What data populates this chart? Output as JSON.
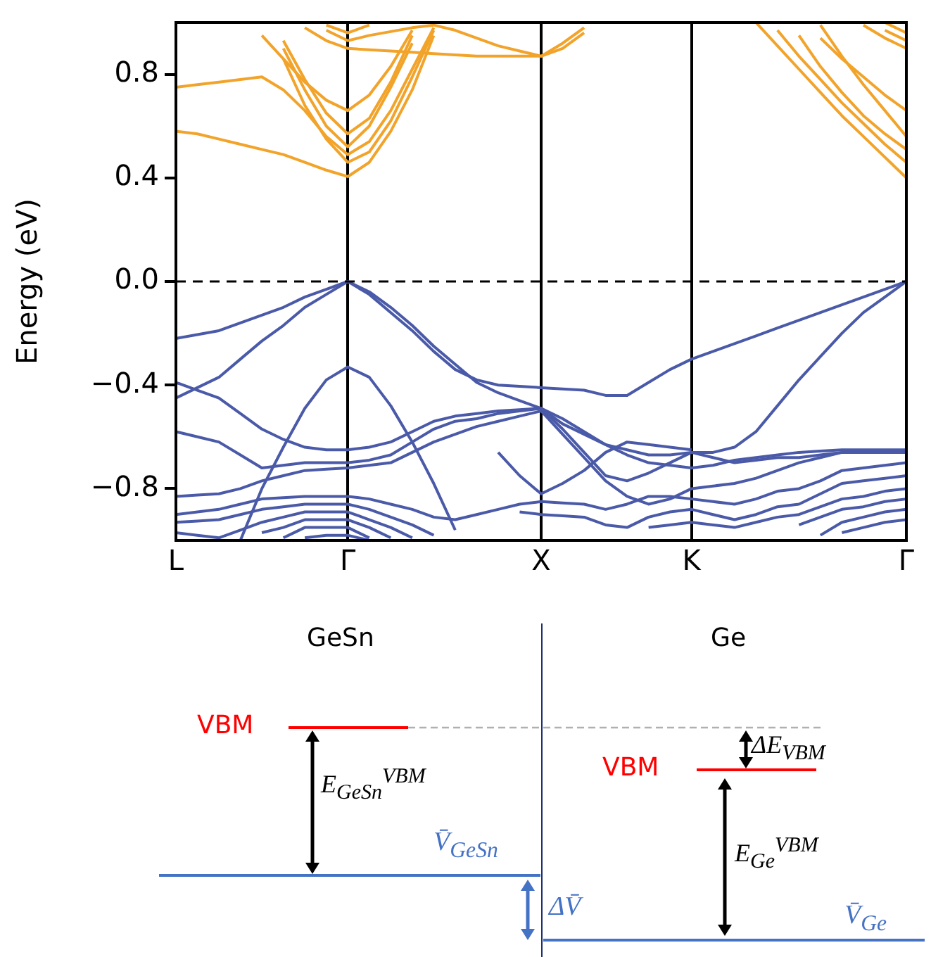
{
  "chart_data": [
    {
      "type": "line",
      "ylabel": "Energy (eV)",
      "categories": [
        "L",
        null,
        null,
        null,
        null,
        null,
        null,
        null,
        "Γ",
        null,
        null,
        null,
        null,
        null,
        null,
        null,
        null,
        "X",
        null,
        null,
        null,
        null,
        null,
        null,
        "K",
        null,
        null,
        null,
        null,
        null,
        null,
        null,
        null,
        null,
        "Γ"
      ],
      "ylim": [
        -1,
        1
      ],
      "yticks": [
        {
          "value": -0.8,
          "label": "−0.8"
        },
        {
          "value": -0.4,
          "label": "−0.4"
        },
        {
          "value": 0,
          "label": "0.0"
        },
        0.4,
        0.8
      ],
      "grid": "x",
      "legend": false,
      "marker": "none",
      "line_style": "solid",
      "ref_lines": [
        {
          "axis": "y",
          "value": 0,
          "color": "#000000",
          "line_style": "dashed"
        }
      ],
      "series": [
        {
          "color": "#f2a32a",
          "values": [
            0.58,
            0.57,
            0.55,
            0.53,
            0.51,
            0.49,
            0.46,
            0.43,
            0.405,
            0.46,
            0.58,
            0.74,
            0.95,
            null,
            null,
            null,
            null,
            null,
            null,
            null,
            null,
            null,
            null,
            null,
            null,
            null,
            null,
            1.0,
            0.91,
            0.82,
            0.73,
            0.64,
            0.56,
            0.48,
            0.4
          ]
        },
        {
          "color": "#f2a32a",
          "values": [
            0.75,
            0.76,
            0.77,
            0.78,
            0.79,
            0.74,
            0.66,
            0.56,
            0.49,
            0.54,
            0.66,
            0.82,
            0.98,
            null,
            null,
            null,
            null,
            null,
            null,
            null,
            null,
            null,
            null,
            null,
            null,
            null,
            null,
            null,
            0.97,
            0.87,
            0.78,
            0.69,
            0.61,
            0.53,
            0.46
          ]
        },
        {
          "color": "#f2a32a",
          "values": [
            null,
            null,
            null,
            null,
            0.95,
            0.86,
            0.77,
            0.7,
            0.66,
            0.72,
            0.83,
            0.97,
            null,
            null,
            null,
            null,
            null,
            null,
            null,
            null,
            null,
            null,
            null,
            null,
            null,
            null,
            null,
            null,
            null,
            0.95,
            0.83,
            0.73,
            0.64,
            0.57,
            0.51
          ]
        },
        {
          "color": "#f2a32a",
          "values": [
            null,
            null,
            null,
            null,
            null,
            0.93,
            0.78,
            0.65,
            0.57,
            0.63,
            0.77,
            0.95,
            null,
            null,
            null,
            null,
            null,
            null,
            null,
            null,
            null,
            null,
            null,
            null,
            null,
            null,
            null,
            null,
            null,
            null,
            0.94,
            0.86,
            0.79,
            0.72,
            0.66
          ]
        },
        {
          "color": "#f2a32a",
          "values": [
            null,
            null,
            null,
            null,
            null,
            0.9,
            0.74,
            0.6,
            0.52,
            0.6,
            0.75,
            0.92,
            null,
            null,
            null,
            null,
            null,
            null,
            null,
            null,
            null,
            null,
            null,
            null,
            null,
            null,
            null,
            null,
            null,
            null,
            0.99,
            0.87,
            0.76,
            0.66,
            0.56
          ]
        },
        {
          "color": "#f2a32a",
          "values": [
            null,
            null,
            null,
            null,
            null,
            0.86,
            0.68,
            0.55,
            0.46,
            0.5,
            0.62,
            0.79,
            0.97,
            null,
            null,
            null,
            null,
            null,
            null,
            null,
            null,
            null,
            null,
            null,
            null,
            null,
            null,
            null,
            null,
            null,
            null,
            null,
            null,
            null,
            null
          ]
        },
        {
          "color": "#f2a32a",
          "values": [
            null,
            null,
            null,
            null,
            null,
            null,
            0.98,
            0.93,
            0.9,
            0.895,
            0.89,
            0.885,
            0.88,
            0.875,
            0.87,
            0.87,
            0.87,
            0.87,
            0.9,
            0.96,
            null,
            null,
            null,
            null,
            null,
            null,
            null,
            null,
            null,
            null,
            null,
            null,
            0.99,
            0.94,
            0.9
          ]
        },
        {
          "color": "#f2a32a",
          "values": [
            null,
            null,
            null,
            null,
            null,
            null,
            null,
            0.97,
            0.93,
            0.95,
            0.965,
            0.98,
            0.99,
            0.97,
            0.94,
            0.91,
            0.89,
            0.87,
            0.92,
            0.98,
            null,
            null,
            null,
            null,
            null,
            null,
            null,
            null,
            null,
            null,
            null,
            null,
            null,
            0.97,
            0.93
          ]
        },
        {
          "color": "#f2a32a",
          "values": [
            null,
            null,
            null,
            null,
            null,
            null,
            null,
            0.99,
            0.96,
            0.99,
            null,
            null,
            null,
            null,
            null,
            null,
            null,
            null,
            null,
            null,
            null,
            null,
            null,
            null,
            null,
            null,
            null,
            null,
            null,
            null,
            null,
            null,
            null,
            1.0,
            0.96
          ]
        },
        {
          "color": "#4a5aa8",
          "values": [
            -0.22,
            -0.205,
            -0.19,
            -0.16,
            -0.13,
            -0.1,
            -0.06,
            -0.03,
            0.0,
            -0.05,
            -0.12,
            -0.19,
            -0.27,
            -0.34,
            -0.38,
            -0.4,
            -0.405,
            -0.41,
            -0.415,
            -0.42,
            -0.44,
            -0.44,
            -0.39,
            -0.34,
            -0.3,
            -0.27,
            -0.24,
            -0.21,
            -0.18,
            -0.15,
            -0.12,
            -0.09,
            -0.06,
            -0.03,
            0.0
          ]
        },
        {
          "color": "#4a5aa8",
          "values": [
            -0.45,
            -0.41,
            -0.37,
            -0.3,
            -0.23,
            -0.17,
            -0.1,
            -0.05,
            0.0,
            -0.04,
            -0.1,
            -0.17,
            -0.25,
            -0.32,
            -0.39,
            -0.43,
            -0.46,
            -0.49,
            -0.55,
            -0.59,
            -0.63,
            -0.65,
            -0.67,
            -0.67,
            -0.66,
            -0.66,
            -0.64,
            -0.58,
            -0.48,
            -0.38,
            -0.29,
            -0.2,
            -0.12,
            -0.06,
            0.0
          ]
        },
        {
          "color": "#4a5aa8",
          "values": [
            null,
            null,
            null,
            -1.0,
            -0.8,
            -0.64,
            -0.49,
            -0.38,
            -0.33,
            -0.37,
            -0.48,
            -0.62,
            -0.78,
            -0.96,
            null,
            null,
            null,
            null,
            null,
            null,
            null,
            null,
            null,
            null,
            null,
            null,
            null,
            null,
            null,
            null,
            null,
            null,
            null,
            null,
            null
          ]
        },
        {
          "color": "#4a5aa8",
          "values": [
            -0.39,
            -0.42,
            -0.45,
            -0.51,
            -0.57,
            -0.61,
            -0.64,
            -0.65,
            -0.65,
            -0.64,
            -0.62,
            -0.58,
            -0.54,
            -0.52,
            -0.51,
            -0.5,
            -0.495,
            -0.49,
            -0.53,
            -0.58,
            -0.63,
            -0.67,
            -0.7,
            -0.71,
            -0.72,
            -0.71,
            -0.69,
            -0.68,
            -0.67,
            -0.66,
            -0.655,
            -0.65,
            -0.65,
            -0.65,
            -0.65
          ]
        },
        {
          "color": "#4a5aa8",
          "values": [
            -0.58,
            -0.6,
            -0.62,
            -0.67,
            -0.72,
            -0.71,
            -0.7,
            -0.7,
            -0.7,
            -0.69,
            -0.67,
            -0.62,
            -0.57,
            -0.54,
            -0.53,
            -0.51,
            -0.5,
            -0.49,
            -0.57,
            -0.66,
            -0.75,
            -0.77,
            -0.74,
            -0.7,
            -0.66,
            -0.68,
            -0.7,
            -0.69,
            -0.68,
            -0.68,
            -0.67,
            -0.66,
            -0.66,
            -0.66,
            -0.66
          ]
        },
        {
          "color": "#4a5aa8",
          "values": [
            null,
            null,
            null,
            null,
            null,
            null,
            null,
            null,
            null,
            null,
            null,
            null,
            null,
            null,
            null,
            -0.66,
            -0.75,
            -0.82,
            -0.78,
            -0.73,
            -0.66,
            -0.62,
            -0.63,
            -0.64,
            -0.65,
            null,
            null,
            null,
            null,
            null,
            null,
            null,
            null,
            null,
            null
          ]
        },
        {
          "color": "#4a5aa8",
          "values": [
            -0.83,
            -0.825,
            -0.82,
            -0.8,
            -0.77,
            -0.75,
            -0.73,
            -0.725,
            -0.72,
            -0.71,
            -0.7,
            -0.66,
            -0.62,
            -0.59,
            -0.56,
            -0.54,
            -0.52,
            -0.5,
            -0.59,
            -0.68,
            -0.77,
            -0.83,
            -0.86,
            -0.84,
            -0.8,
            -0.79,
            -0.78,
            -0.76,
            -0.73,
            -0.7,
            -0.68,
            -0.66,
            -0.66,
            -0.66,
            -0.66
          ]
        },
        {
          "color": "#4a5aa8",
          "values": [
            -0.9,
            -0.89,
            -0.88,
            -0.86,
            -0.84,
            -0.835,
            -0.83,
            -0.83,
            -0.83,
            -0.84,
            -0.86,
            -0.88,
            -0.91,
            -0.92,
            -0.9,
            -0.88,
            -0.86,
            -0.85,
            -0.855,
            -0.86,
            -0.88,
            -0.86,
            -0.83,
            -0.83,
            -0.84,
            -0.85,
            -0.86,
            -0.84,
            -0.81,
            -0.8,
            -0.77,
            -0.73,
            -0.72,
            -0.71,
            -0.7
          ]
        },
        {
          "color": "#4a5aa8",
          "values": [
            -0.93,
            -0.925,
            -0.92,
            -0.9,
            -0.88,
            -0.87,
            -0.86,
            -0.86,
            -0.86,
            -0.88,
            -0.91,
            -0.94,
            -0.98,
            null,
            null,
            null,
            -0.89,
            -0.9,
            -0.905,
            -0.91,
            -0.94,
            -0.95,
            -0.91,
            -0.89,
            -0.88,
            -0.9,
            -0.92,
            -0.9,
            -0.87,
            -0.86,
            -0.82,
            -0.78,
            -0.77,
            -0.76,
            -0.75
          ]
        },
        {
          "color": "#4a5aa8",
          "values": [
            -0.97,
            -0.98,
            -0.99,
            -0.96,
            -0.93,
            -0.91,
            -0.89,
            -0.89,
            -0.89,
            -0.92,
            -0.95,
            -0.99,
            null,
            null,
            null,
            null,
            null,
            null,
            null,
            null,
            null,
            null,
            -0.95,
            -0.94,
            -0.93,
            -0.94,
            -0.95,
            -0.93,
            -0.91,
            -0.9,
            -0.87,
            -0.84,
            -0.83,
            -0.81,
            -0.8
          ]
        },
        {
          "color": "#4a5aa8",
          "values": [
            null,
            null,
            null,
            null,
            -0.97,
            -0.95,
            -0.92,
            -0.92,
            -0.92,
            -0.95,
            -0.99,
            null,
            null,
            null,
            null,
            null,
            null,
            null,
            null,
            null,
            null,
            null,
            null,
            null,
            null,
            null,
            null,
            null,
            null,
            -0.94,
            -0.91,
            -0.88,
            -0.87,
            -0.85,
            -0.84
          ]
        },
        {
          "color": "#4a5aa8",
          "values": [
            null,
            null,
            null,
            null,
            null,
            -0.99,
            -0.95,
            -0.95,
            -0.95,
            -0.99,
            null,
            null,
            null,
            null,
            null,
            null,
            null,
            null,
            null,
            null,
            null,
            null,
            null,
            null,
            null,
            null,
            null,
            null,
            null,
            null,
            -0.98,
            -0.93,
            -0.91,
            -0.89,
            -0.88
          ]
        },
        {
          "color": "#4a5aa8",
          "values": [
            null,
            null,
            null,
            null,
            null,
            null,
            -0.99,
            -0.98,
            -0.98,
            -1.0,
            null,
            null,
            null,
            null,
            null,
            null,
            null,
            null,
            null,
            null,
            null,
            null,
            null,
            null,
            null,
            null,
            null,
            null,
            null,
            null,
            null,
            -0.97,
            -0.95,
            -0.93,
            -0.92
          ]
        }
      ]
    },
    {
      "type": "other",
      "annotations": [
        "GeSn",
        "Ge",
        "VBM",
        "VBM",
        "E$_{GeSn}$$^{VBM}$",
        "V̄$_{GeSn}$",
        "ΔV̄",
        "ΔE$_{VBM}$",
        "E$_{Ge}$$^{VBM}$",
        "V̄$_{Ge}$"
      ]
    }
  ]
}
